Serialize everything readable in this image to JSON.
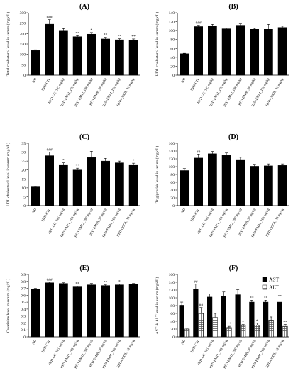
{
  "categories": [
    "ND",
    "HFD-CTL",
    "HFD-GC_245 mg/kg",
    "HFD-EM11_100 mg/kg",
    "HFD-EM12_100 mg/kg",
    "HFD-EM80_50 mg/kg",
    "HFD-EM81_100 mg/kg",
    "HFD-QOOL_10 mg/kg"
  ],
  "chart_data": [
    {
      "type": "bar",
      "label": "(A)",
      "ylabel": "Total cholesterol level in serum (mg/dL)",
      "ylim": [
        0,
        300
      ],
      "yticks": [
        0,
        50,
        100,
        150,
        200,
        250,
        300
      ],
      "values": [
        119,
        245,
        212,
        185,
        197,
        174,
        170,
        167
      ],
      "errors": [
        3,
        22,
        12,
        5,
        8,
        8,
        5,
        7
      ],
      "marks": [
        "",
        "###",
        "",
        "**",
        "*",
        "**",
        "**",
        "**"
      ]
    },
    {
      "type": "bar",
      "label": "(B)",
      "ylabel": "HDL cholesterol level in serum (mg/dL)",
      "ylim": [
        0,
        140
      ],
      "yticks": [
        0,
        20,
        40,
        60,
        80,
        100,
        120,
        140
      ],
      "values": [
        48,
        109,
        111,
        104,
        112,
        103,
        103,
        107
      ],
      "errors": [
        1,
        3,
        3,
        2,
        3,
        2,
        11,
        3
      ],
      "marks": [
        "",
        "###",
        "",
        "",
        "",
        "",
        "",
        ""
      ]
    },
    {
      "type": "bar",
      "label": "(C)",
      "ylabel": "LDL cholesterol level in serum (mg/dL)",
      "ylim": [
        0,
        35
      ],
      "yticks": [
        0,
        5,
        10,
        15,
        20,
        25,
        30,
        35
      ],
      "values": [
        10.5,
        28,
        23,
        20,
        27,
        25,
        24,
        23
      ],
      "errors": [
        0.3,
        2,
        1,
        1,
        3.5,
        1.5,
        1,
        0.8
      ],
      "marks": [
        "",
        "###",
        "*",
        "**",
        "",
        "",
        "",
        "*"
      ]
    },
    {
      "type": "bar",
      "label": "(D)",
      "ylabel": "Triglyceride level in serum (mg/dL)",
      "ylim": [
        0,
        160
      ],
      "yticks": [
        0,
        20,
        40,
        60,
        80,
        100,
        120,
        140,
        160
      ],
      "values": [
        90,
        122,
        133,
        129,
        118,
        101,
        102,
        103
      ],
      "errors": [
        5,
        10,
        6,
        6,
        6,
        5,
        5,
        4
      ],
      "marks": [
        "",
        "##",
        "",
        "",
        "",
        "",
        "",
        ""
      ]
    },
    {
      "type": "bar",
      "label": "(E)",
      "ylabel": "Creatinine level in serum (mg/dL)",
      "ylim": [
        0,
        0.9
      ],
      "yticks": [
        0,
        0.1,
        0.2,
        0.3,
        0.4,
        0.5,
        0.6,
        0.7,
        0.8,
        0.9
      ],
      "values": [
        0.69,
        0.78,
        0.77,
        0.72,
        0.75,
        0.74,
        0.75,
        0.76
      ],
      "errors": [
        0.01,
        0.01,
        0.01,
        0.01,
        0.02,
        0.01,
        0.01,
        0.01
      ],
      "marks": [
        "",
        "###",
        "",
        "**",
        "",
        "**",
        "*",
        ""
      ]
    },
    {
      "type": "bar",
      "label": "(F)",
      "ylabel": "AST & ALT level in serum (mg/dL)",
      "ylim": [
        0,
        160
      ],
      "yticks": [
        0,
        20,
        40,
        60,
        80,
        100,
        120,
        140,
        160
      ],
      "legend": "top-right",
      "series": [
        {
          "name": "AST",
          "values": [
            81,
            123,
            102,
            105,
            108,
            89,
            89,
            89
          ],
          "errors": [
            8,
            12,
            8,
            10,
            13,
            5,
            5,
            8
          ],
          "marks": [
            "",
            "##",
            "",
            "",
            "",
            "**",
            "**",
            "**"
          ]
        },
        {
          "name": "ALT",
          "values": [
            20,
            61,
            50,
            24,
            29,
            30,
            43,
            27
          ],
          "errors": [
            2,
            14,
            10,
            3,
            3,
            5,
            8,
            5
          ],
          "marks": [
            "",
            "##",
            "",
            "**",
            "*",
            "*",
            "",
            "**"
          ]
        }
      ]
    }
  ]
}
